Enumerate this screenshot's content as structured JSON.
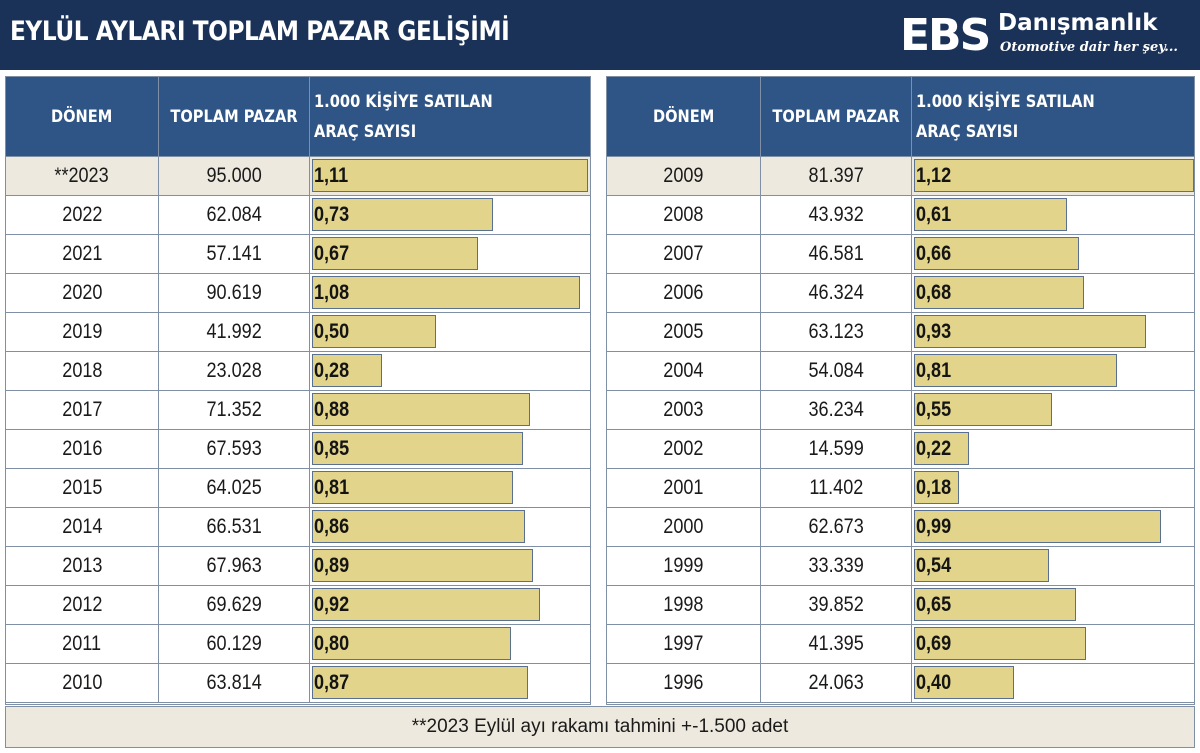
{
  "header": {
    "title": "EYLÜL AYLARI TOPLAM PAZAR GELİŞİMİ",
    "logo_mark": "EBS",
    "logo_name": "Danışmanlık",
    "logo_slogan": "Otomotive dair her şey..."
  },
  "columns": {
    "period": "DÖNEM",
    "total": "TOPLAM  PAZAR",
    "rate": "1.000 KİŞİYE SATILAN ARAÇ SAYISI"
  },
  "footnote": "**2023 Eylül ayı rakamı tahmini +-1.500 adet",
  "colors": {
    "header_bg": "#1b3258",
    "table_head_bg": "#2e5585",
    "bar_fill": "#e2d48a",
    "row_shade": "#ede9df"
  },
  "chart_data": {
    "type": "table",
    "title": "EYLÜL AYLARI TOPLAM PAZAR GELİŞİMİ",
    "bar_scale_max": 1.12,
    "left_rows": [
      {
        "period": "**2023",
        "total": "95.000",
        "rate": "1,11"
      },
      {
        "period": "2022",
        "total": "62.084",
        "rate": "0,73"
      },
      {
        "period": "2021",
        "total": "57.141",
        "rate": "0,67"
      },
      {
        "period": "2020",
        "total": "90.619",
        "rate": "1,08"
      },
      {
        "period": "2019",
        "total": "41.992",
        "rate": "0,50"
      },
      {
        "period": "2018",
        "total": "23.028",
        "rate": "0,28"
      },
      {
        "period": "2017",
        "total": "71.352",
        "rate": "0,88"
      },
      {
        "period": "2016",
        "total": "67.593",
        "rate": "0,85"
      },
      {
        "period": "2015",
        "total": "64.025",
        "rate": "0,81"
      },
      {
        "period": "2014",
        "total": "66.531",
        "rate": "0,86"
      },
      {
        "period": "2013",
        "total": "67.963",
        "rate": "0,89"
      },
      {
        "period": "2012",
        "total": "69.629",
        "rate": "0,92"
      },
      {
        "period": "2011",
        "total": "60.129",
        "rate": "0,80"
      },
      {
        "period": "2010",
        "total": "63.814",
        "rate": "0,87"
      }
    ],
    "right_rows": [
      {
        "period": "2009",
        "total": "81.397",
        "rate": "1,12"
      },
      {
        "period": "2008",
        "total": "43.932",
        "rate": "0,61"
      },
      {
        "period": "2007",
        "total": "46.581",
        "rate": "0,66"
      },
      {
        "period": "2006",
        "total": "46.324",
        "rate": "0,68"
      },
      {
        "period": "2005",
        "total": "63.123",
        "rate": "0,93"
      },
      {
        "period": "2004",
        "total": "54.084",
        "rate": "0,81"
      },
      {
        "period": "2003",
        "total": "36.234",
        "rate": "0,55"
      },
      {
        "period": "2002",
        "total": "14.599",
        "rate": "0,22"
      },
      {
        "period": "2001",
        "total": "11.402",
        "rate": "0,18"
      },
      {
        "period": "2000",
        "total": "62.673",
        "rate": "0,99"
      },
      {
        "period": "1999",
        "total": "33.339",
        "rate": "0,54"
      },
      {
        "period": "1998",
        "total": "39.852",
        "rate": "0,65"
      },
      {
        "period": "1997",
        "total": "41.395",
        "rate": "0,69"
      },
      {
        "period": "1996",
        "total": "24.063",
        "rate": "0,40"
      }
    ]
  }
}
